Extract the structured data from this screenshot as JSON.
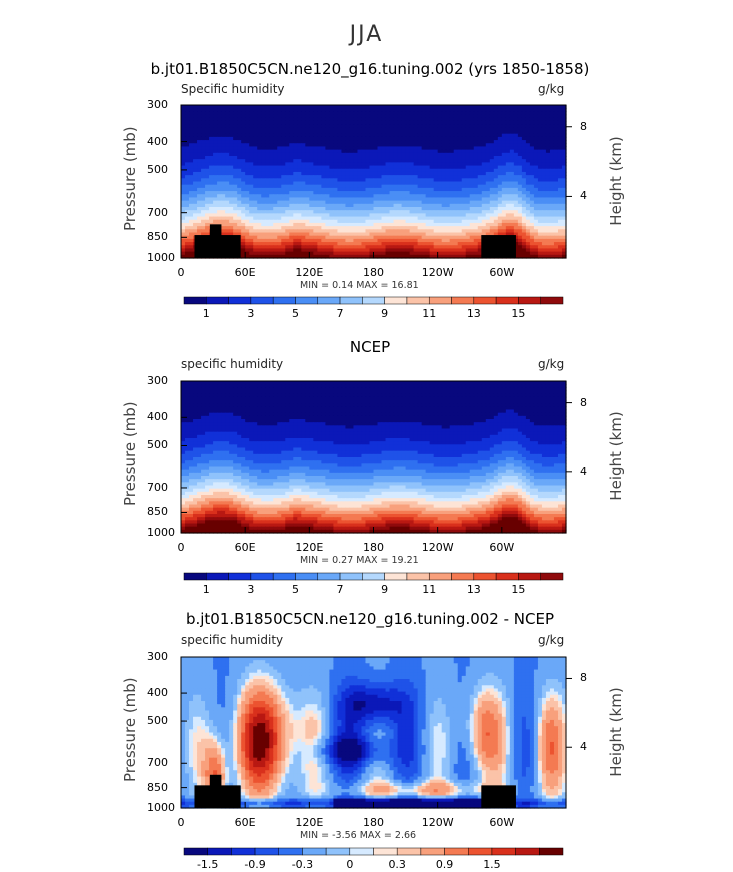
{
  "title": "JJA",
  "chart_data": [
    {
      "type": "heatmap",
      "title": "b.jt01.B1850C5CN.ne120_g16.tuning.002 (yrs 1850-1858)",
      "subtitle": "Specific humidity",
      "units": "g/kg",
      "ylabel": "Pressure (mb)",
      "y2label": "Height (km)",
      "xticks": [
        "0",
        "60E",
        "120E",
        "180",
        "120W",
        "60W"
      ],
      "yticks": [
        "300",
        "400",
        "500",
        "700",
        "850",
        "1000"
      ],
      "y2ticks": [
        "8",
        "4"
      ],
      "ylim": [
        1000,
        300
      ],
      "stats": "MIN =    0.14   MAX =   16.81",
      "min": 0.14,
      "max": 16.81,
      "colorbar_labels": [
        "1",
        "3",
        "5",
        "7",
        "9",
        "11",
        "13",
        "15"
      ]
    },
    {
      "type": "heatmap",
      "title": "NCEP",
      "subtitle": "specific humidity",
      "units": "g/kg",
      "ylabel": "Pressure (mb)",
      "y2label": "Height (km)",
      "xticks": [
        "0",
        "60E",
        "120E",
        "180",
        "120W",
        "60W"
      ],
      "yticks": [
        "300",
        "400",
        "500",
        "700",
        "850",
        "1000"
      ],
      "y2ticks": [
        "8",
        "4"
      ],
      "ylim": [
        1000,
        300
      ],
      "stats": "MIN =    0.27   MAX =   19.21",
      "min": 0.27,
      "max": 19.21,
      "colorbar_labels": [
        "1",
        "3",
        "5",
        "7",
        "9",
        "11",
        "13",
        "15"
      ]
    },
    {
      "type": "heatmap",
      "title": "b.jt01.B1850C5CN.ne120_g16.tuning.002 - NCEP",
      "subtitle": "specific humidity",
      "units": "g/kg",
      "ylabel": "Pressure (mb)",
      "y2label": "Height (km)",
      "xticks": [
        "0",
        "60E",
        "120E",
        "180",
        "120W",
        "60W"
      ],
      "yticks": [
        "300",
        "400",
        "500",
        "700",
        "850",
        "1000"
      ],
      "y2ticks": [
        "8",
        "4"
      ],
      "ylim": [
        1000,
        300
      ],
      "stats": "MIN =   -3.56   MAX =    2.66",
      "min": -3.56,
      "max": 2.66,
      "colorbar_labels": [
        "-1.5",
        "-0.9",
        "-0.3",
        "0",
        "0.3",
        "0.9",
        "1.5"
      ]
    }
  ],
  "colors": {
    "palette": [
      "#08087e",
      "#0b18b8",
      "#1130d8",
      "#1f52e8",
      "#2f70f0",
      "#4a8ef5",
      "#6aa8f8",
      "#8fc2fb",
      "#b4d8fd",
      "#d6eaff",
      "#fde4d6",
      "#fbc3a8",
      "#f8a07c",
      "#f47a52",
      "#ec5330",
      "#d9301c",
      "#b81812",
      "#8f0a0c",
      "#680000"
    ],
    "terrain": "#000000"
  }
}
